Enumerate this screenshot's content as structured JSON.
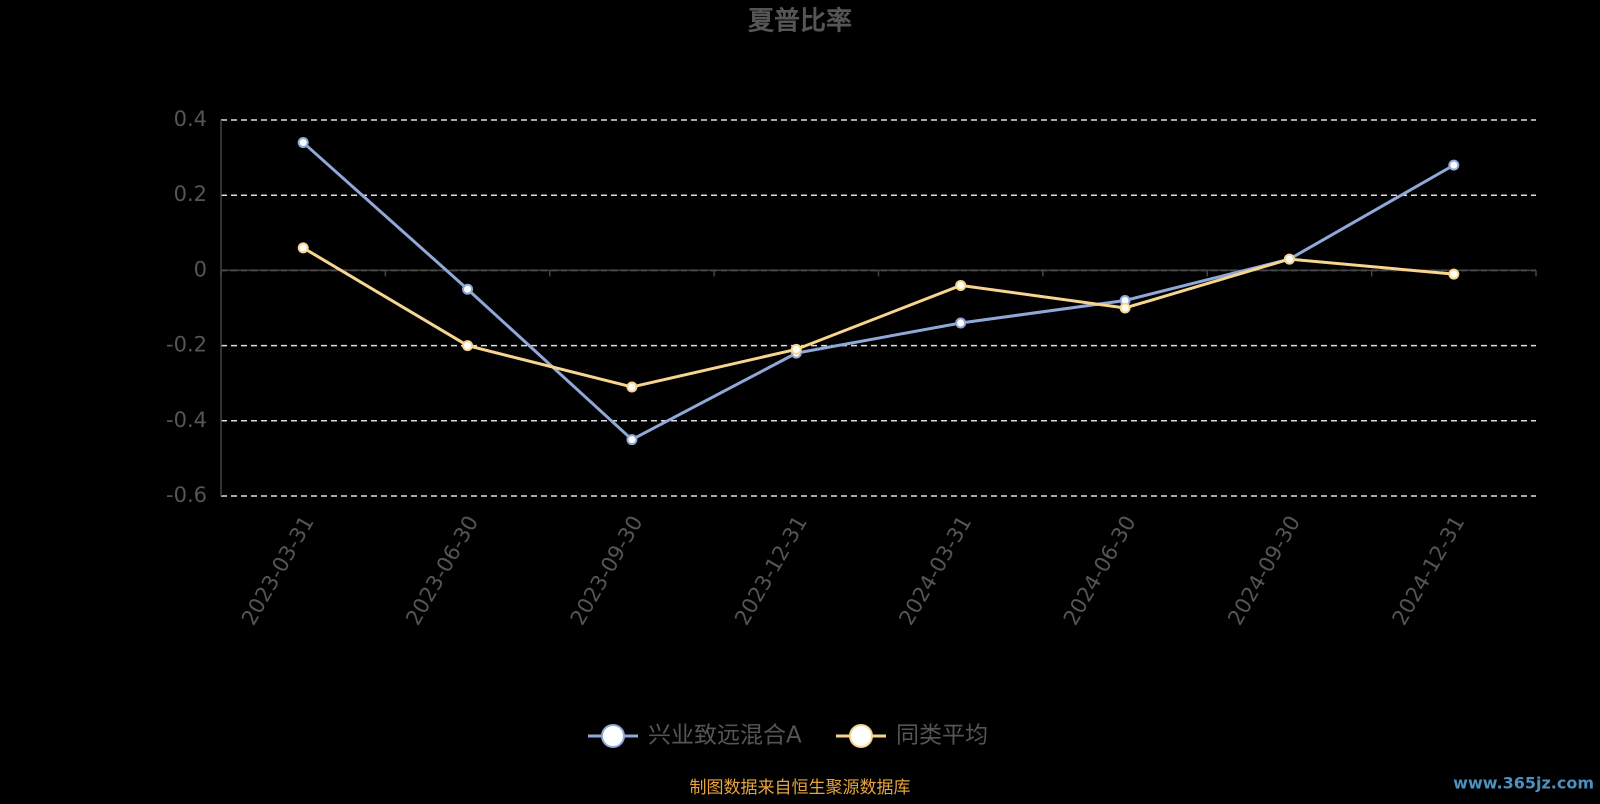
{
  "chart_data": {
    "type": "line",
    "title": "夏普比率",
    "categories": [
      "2023-03-31",
      "2023-06-30",
      "2023-09-30",
      "2023-12-31",
      "2024-03-31",
      "2024-06-30",
      "2024-09-30",
      "2024-12-31"
    ],
    "series": [
      {
        "name": "兴业致远混合A",
        "color": "#8fa8d8",
        "values": [
          0.34,
          -0.05,
          -0.45,
          -0.22,
          -0.14,
          -0.08,
          0.03,
          0.28
        ]
      },
      {
        "name": "同类平均",
        "color": "#f8d58e",
        "values": [
          0.06,
          -0.2,
          -0.31,
          -0.21,
          -0.04,
          -0.1,
          0.03,
          -0.01
        ]
      }
    ],
    "ylim": [
      -0.6,
      0.4
    ],
    "yticks": [
      -0.6,
      -0.4,
      -0.2,
      0,
      0.2,
      0.4
    ],
    "grid": true,
    "legend": "bottom"
  },
  "footer": {
    "source": "制图数据来自恒生聚源数据库",
    "watermark": "www.365jz.com"
  }
}
